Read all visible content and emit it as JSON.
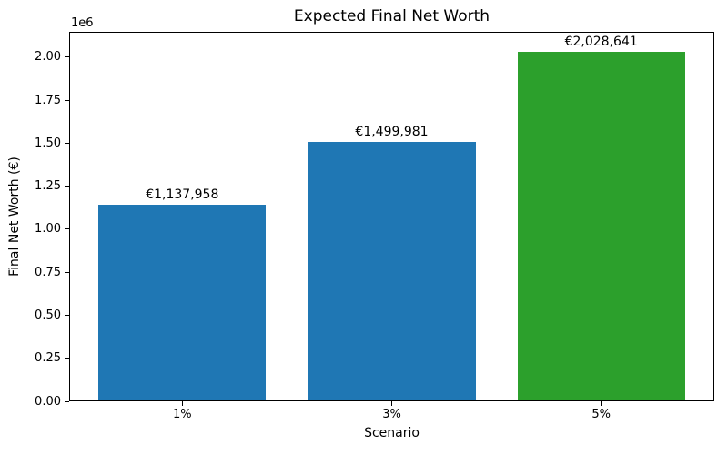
{
  "figure": {
    "background": "#ffffff",
    "spine_color": "#000000",
    "text_color": "#000000"
  },
  "chart_data": {
    "type": "bar",
    "title": "Expected Final Net Worth",
    "xlabel": "Scenario",
    "ylabel": "Final Net Worth (€)",
    "y_offset_text": "1e6",
    "categories": [
      "1%",
      "3%",
      "5%"
    ],
    "values": [
      1137958,
      1499981,
      2028641
    ],
    "bar_labels": [
      "€1,137,958",
      "€1,499,981",
      "€2,028,641"
    ],
    "bar_colors": [
      "#1f77b4",
      "#1f77b4",
      "#2ca02c"
    ],
    "bar_width": 0.8,
    "xlim": [
      -0.54,
      2.54
    ],
    "ylim": [
      0,
      2148000
    ],
    "yticks": [
      0,
      250000,
      500000,
      750000,
      1000000,
      1250000,
      1500000,
      1750000,
      2000000
    ],
    "ytick_labels": [
      "0.00",
      "0.25",
      "0.50",
      "0.75",
      "1.00",
      "1.25",
      "1.50",
      "1.75",
      "2.00"
    ],
    "grid": false,
    "legend": "none"
  }
}
